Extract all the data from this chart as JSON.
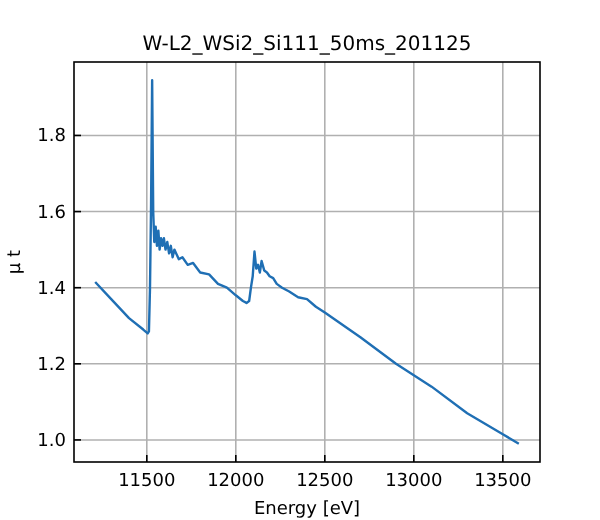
{
  "chart_data": {
    "type": "line",
    "title": "W-L2_WSi2_Si111_50ms_201125",
    "xlabel": "Energy [eV]",
    "ylabel": "μ t",
    "xlim": [
      11091,
      13709
    ],
    "ylim": [
      0.942,
      1.993
    ],
    "xticks": [
      11500,
      12000,
      12500,
      13000,
      13500
    ],
    "yticks": [
      {
        "value": 1,
        "label": "1.0"
      },
      1.2,
      1.4,
      1.6,
      1.8
    ],
    "grid": true,
    "series": [
      {
        "color": "#1f6fb4",
        "x": [
          11210,
          11300,
          11400,
          11480,
          11505,
          11512,
          11518,
          11524,
          11530,
          11536,
          11542,
          11550,
          11557,
          11565,
          11572,
          11580,
          11588,
          11596,
          11605,
          11615,
          11625,
          11635,
          11645,
          11655,
          11665,
          11680,
          11700,
          11730,
          11760,
          11800,
          11850,
          11900,
          11950,
          12000,
          12040,
          12060,
          12075,
          12085,
          12095,
          12105,
          12115,
          12125,
          12135,
          12145,
          12160,
          12175,
          12190,
          12210,
          12230,
          12260,
          12300,
          12350,
          12400,
          12450,
          12500,
          12700,
          12900,
          13100,
          13300,
          13500,
          13590
        ],
        "values": [
          1.415,
          1.37,
          1.32,
          1.29,
          1.28,
          1.285,
          1.4,
          1.62,
          1.945,
          1.6,
          1.52,
          1.56,
          1.51,
          1.55,
          1.5,
          1.53,
          1.51,
          1.53,
          1.5,
          1.52,
          1.49,
          1.51,
          1.48,
          1.5,
          1.49,
          1.475,
          1.48,
          1.46,
          1.465,
          1.44,
          1.435,
          1.41,
          1.4,
          1.38,
          1.365,
          1.36,
          1.365,
          1.4,
          1.43,
          1.495,
          1.45,
          1.46,
          1.44,
          1.47,
          1.445,
          1.44,
          1.43,
          1.425,
          1.41,
          1.4,
          1.39,
          1.375,
          1.37,
          1.35,
          1.335,
          1.27,
          1.2,
          1.14,
          1.07,
          1.015,
          0.99
        ]
      }
    ]
  }
}
